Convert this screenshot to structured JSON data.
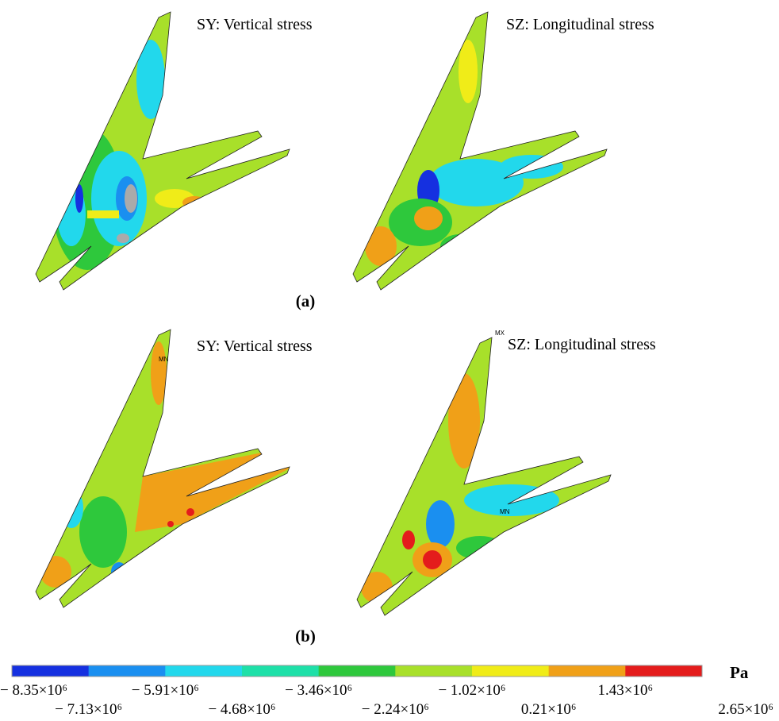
{
  "figure": {
    "panels": [
      {
        "label": "(a)",
        "plots": [
          {
            "title": "SY: Vertical stress"
          },
          {
            "title": "SZ: Longitudinal stress"
          }
        ]
      },
      {
        "label": "(b)",
        "plots": [
          {
            "title": "SY: Vertical stress",
            "markers": [
              "MN"
            ]
          },
          {
            "title": "SZ: Longitudinal stress",
            "markers": [
              "MX",
              "MN"
            ]
          }
        ]
      }
    ],
    "colorbar": {
      "unit": "Pa",
      "colors": [
        "#1530e0",
        "#1a8ff0",
        "#22d8ec",
        "#1ee0a8",
        "#2ec83c",
        "#a8e02a",
        "#f0ec18",
        "#f0a018",
        "#e41c1c"
      ],
      "labels": [
        "− 8.35×10⁶",
        "− 7.13×10⁶",
        "− 5.91×10⁶",
        "− 4.68×10⁶",
        "− 3.46×10⁶",
        "− 2.24×10⁶",
        "− 1.02×10⁶",
        "0.21×10⁶",
        "1.43×10⁶",
        "2.65×10⁶"
      ]
    }
  }
}
